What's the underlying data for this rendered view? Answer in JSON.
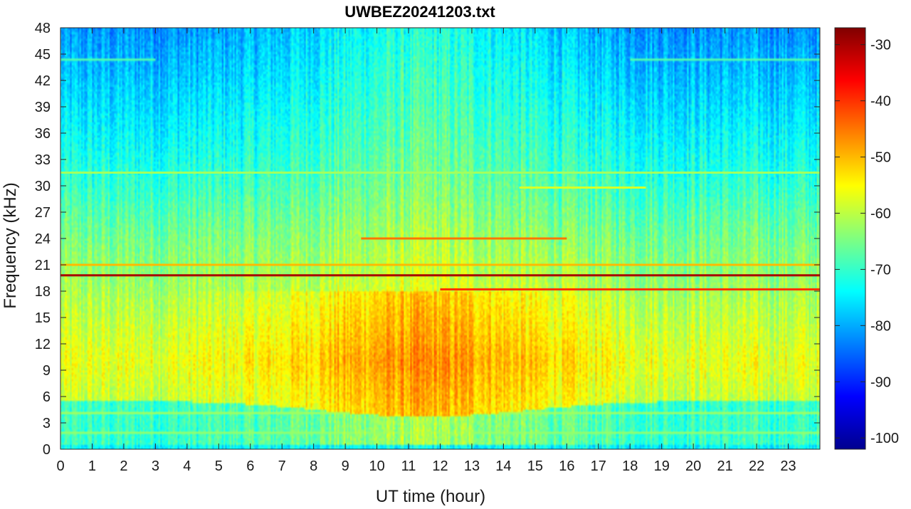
{
  "chart_data": {
    "type": "heatmap",
    "title": "UWBEZ20241203.txt",
    "xlabel": "UT time (hour)",
    "ylabel": "Frequency (kHz)",
    "xlim": [
      0,
      24
    ],
    "ylim": [
      0,
      48
    ],
    "xticks": [
      "0",
      "1",
      "2",
      "3",
      "4",
      "5",
      "6",
      "7",
      "8",
      "9",
      "10",
      "11",
      "12",
      "13",
      "14",
      "15",
      "16",
      "17",
      "18",
      "19",
      "20",
      "21",
      "22",
      "23"
    ],
    "yticks": [
      "0",
      "3",
      "6",
      "9",
      "12",
      "15",
      "18",
      "21",
      "24",
      "27",
      "30",
      "33",
      "36",
      "39",
      "42",
      "45",
      "48"
    ],
    "colorbar": {
      "colormap": "jet",
      "clim": [
        -102,
        -27
      ],
      "ticks": [
        "-30",
        "-40",
        "-50",
        "-60",
        "-70",
        "-80",
        "-90",
        "-100"
      ]
    },
    "constant_lines": [
      {
        "freq_khz": 19.8,
        "level_db": -30,
        "x_start": 0,
        "x_end": 24
      },
      {
        "freq_khz": 18.2,
        "level_db": -40,
        "x_start": 12,
        "x_end": 24
      },
      {
        "freq_khz": 24.0,
        "level_db": -45,
        "x_start": 9.5,
        "x_end": 16
      },
      {
        "freq_khz": 21.0,
        "level_db": -50,
        "x_start": 0,
        "x_end": 24
      },
      {
        "freq_khz": 29.8,
        "level_db": -58,
        "x_start": 14.5,
        "x_end": 18.5
      },
      {
        "freq_khz": 31.5,
        "level_db": -62,
        "x_start": 0,
        "x_end": 24
      }
    ]
  }
}
